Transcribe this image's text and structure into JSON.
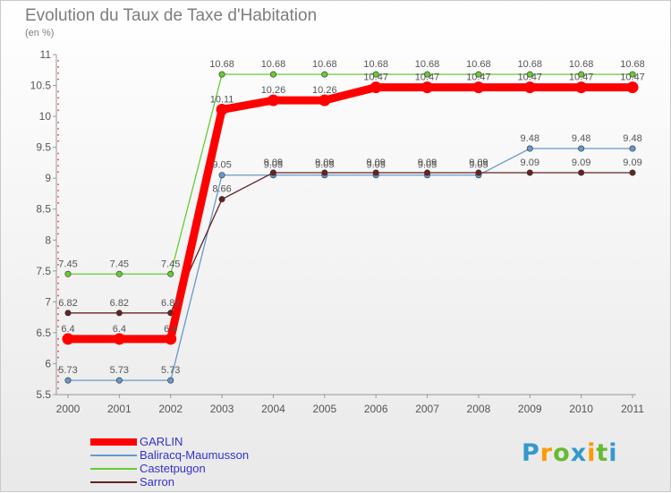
{
  "title": "Evolution du Taux de Taxe d'Habitation",
  "subtitle": "(en %)",
  "logo_text": "Proxiti",
  "chart_data": {
    "type": "line",
    "x": [
      "2000",
      "2001",
      "2002",
      "2003",
      "2004",
      "2005",
      "2006",
      "2007",
      "2008",
      "2009",
      "2010",
      "2011"
    ],
    "ylim": [
      5.5,
      11
    ],
    "yticks": [
      "5.5",
      "6",
      "6.5",
      "7",
      "7.5",
      "8",
      "8.5",
      "9",
      "9.5",
      "10",
      "10.5",
      "11"
    ],
    "grid": false,
    "legend_position": "bottom-left",
    "series": [
      {
        "name": "GARLIN",
        "color": "#ff0000",
        "values": [
          6.4,
          6.4,
          6.4,
          10.11,
          10.26,
          10.26,
          10.47,
          10.47,
          10.47,
          10.47,
          10.47,
          10.47
        ],
        "labels": [
          "6.4",
          "6.4",
          "6.4",
          "10.11",
          "10.26",
          "10.26",
          "10.47",
          "10.47",
          "10.47",
          "10.47",
          "10.47",
          "10.47"
        ]
      },
      {
        "name": "Baliracq-Maumusson",
        "color": "#6699cc",
        "values": [
          5.73,
          5.73,
          5.73,
          9.05,
          9.05,
          9.05,
          9.05,
          9.05,
          9.05,
          9.48,
          9.48,
          9.48
        ],
        "labels": [
          "5.73",
          "5.73",
          "5.73",
          "9.05",
          "9.05",
          "9.05",
          "9.05",
          "9.05",
          "9.05",
          "9.48",
          "9.48",
          "9.48"
        ]
      },
      {
        "name": "Castetpugon",
        "color": "#66cc33",
        "values": [
          7.45,
          7.45,
          7.45,
          10.68,
          10.68,
          10.68,
          10.68,
          10.68,
          10.68,
          10.68,
          10.68,
          10.68
        ],
        "labels": [
          "7.45",
          "7.45",
          "7.45",
          "10.68",
          "10.68",
          "10.68",
          "10.68",
          "10.68",
          "10.68",
          "10.68",
          "10.68",
          "10.68"
        ]
      },
      {
        "name": "Sarron",
        "color": "#662222",
        "values": [
          6.82,
          6.82,
          6.82,
          8.66,
          9.09,
          9.09,
          9.09,
          9.09,
          9.09,
          9.09,
          9.09,
          9.09
        ],
        "labels": [
          "6.82",
          "6.82",
          "6.82",
          "8.66",
          "9.09",
          "9.09",
          "9.09",
          "9.09",
          "9.09",
          "9.09",
          "9.09",
          "9.09"
        ]
      }
    ]
  }
}
